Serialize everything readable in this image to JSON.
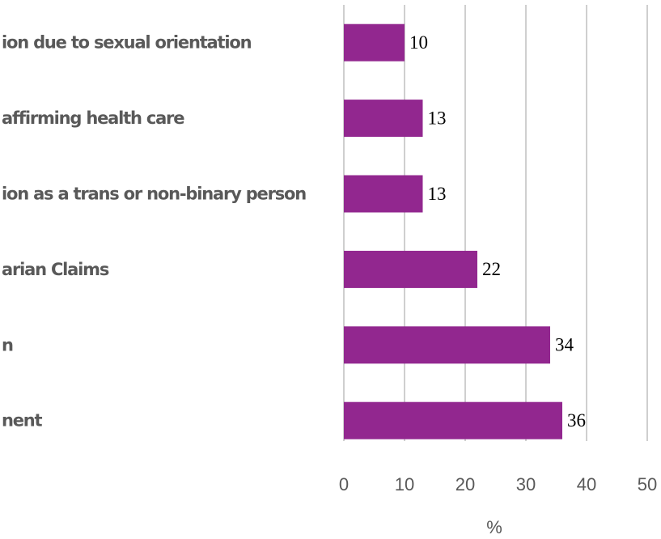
{
  "chart_data": {
    "type": "barh",
    "x_label": "%",
    "categories": [
      "ion due to sexual orientation",
      "affirming health care",
      "ion as a trans or non-binary person",
      "arian Claims",
      "n",
      "nent"
    ],
    "values": [
      10,
      13,
      13,
      22,
      34,
      36
    ],
    "color": "#92278f",
    "xlim": [
      0,
      50
    ],
    "xticks": [
      0,
      10,
      20,
      30,
      40,
      50
    ],
    "grid": true
  }
}
